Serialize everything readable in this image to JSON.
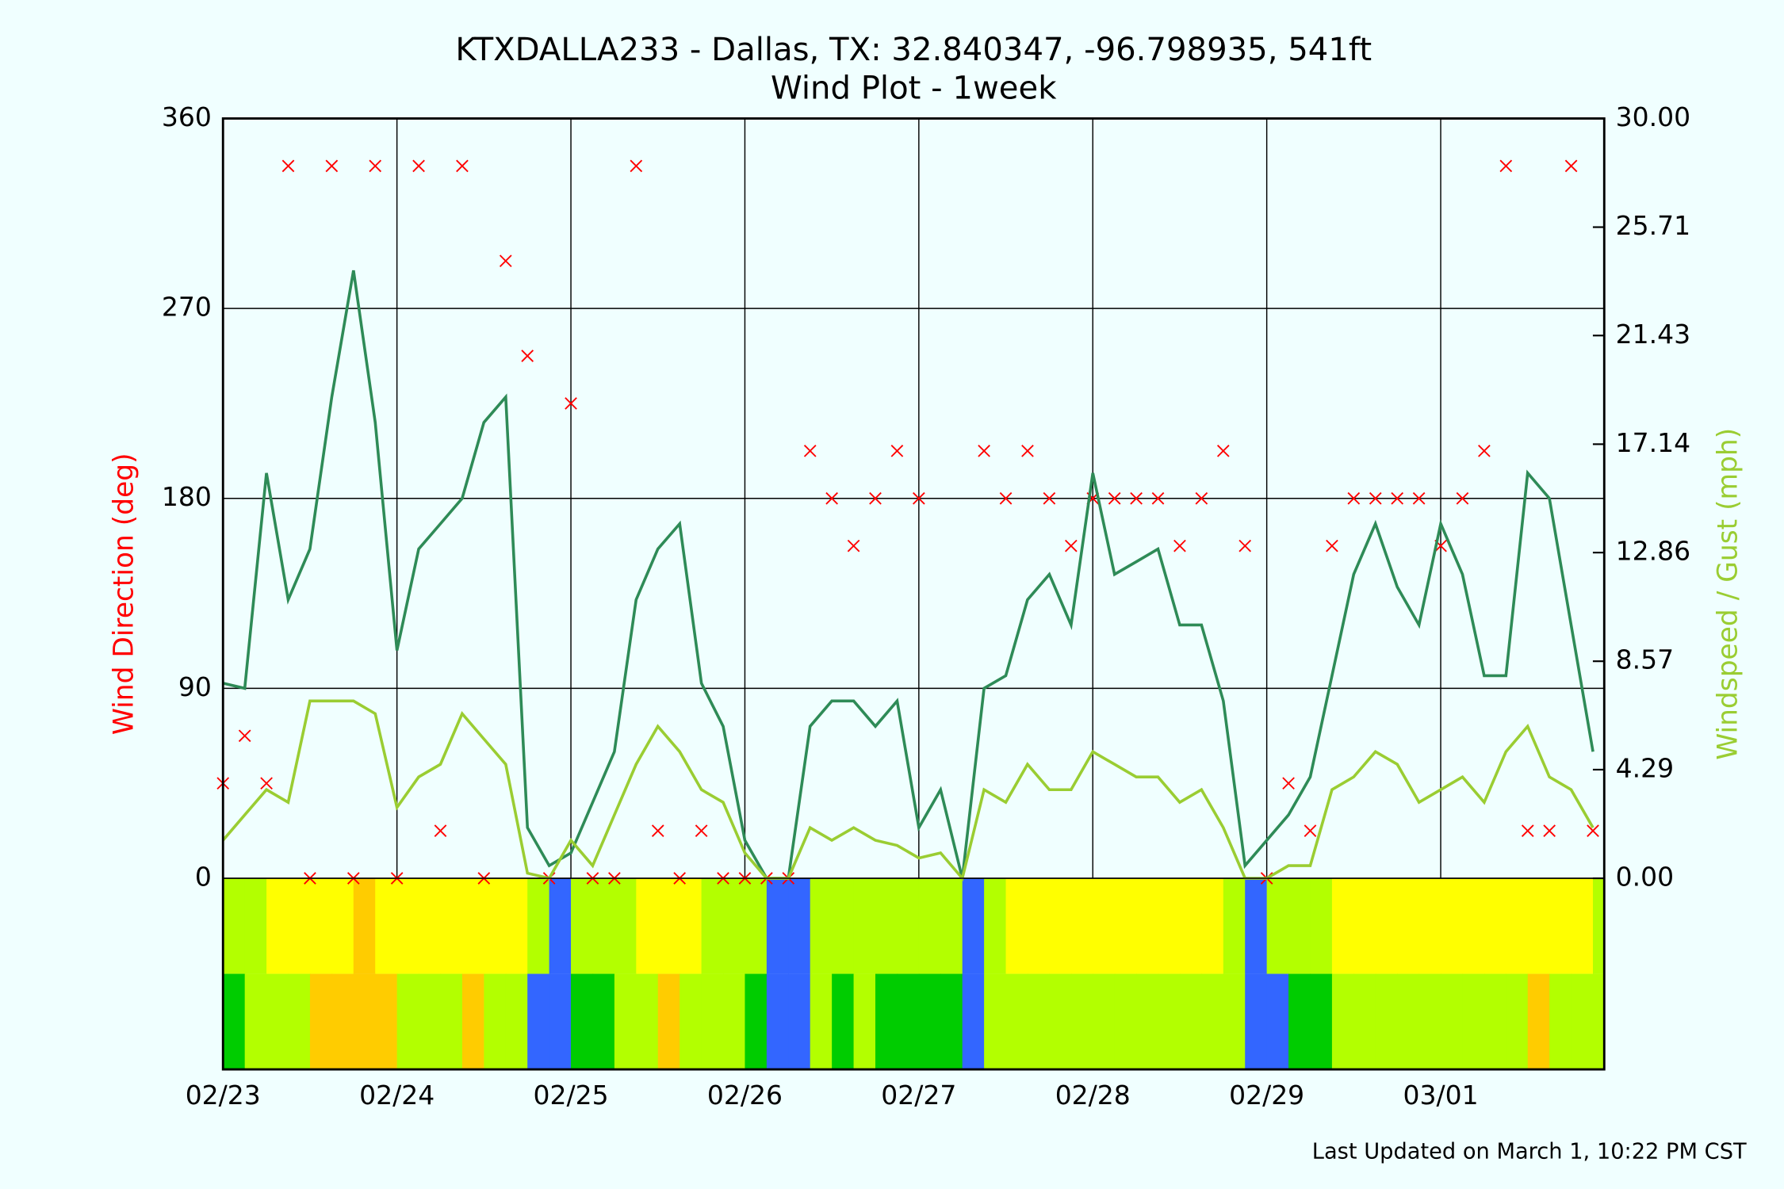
{
  "chart_data": {
    "type": "wind",
    "title": "KTXDALLA233 - Dallas, TX: 32.840347, -96.798935, 541ft",
    "subtitle": "Wind Plot - 1week",
    "ylabel": "Wind Direction (deg)",
    "y2label": "Windspeed / Gust (mph)",
    "footer": "Last Updated on March 1, 10:22 PM CST",
    "xlim": [
      0,
      7.94
    ],
    "xticks": [
      {
        "value": 0,
        "label": "02/23"
      },
      {
        "value": 1,
        "label": "02/24"
      },
      {
        "value": 2,
        "label": "02/25"
      },
      {
        "value": 3,
        "label": "02/26"
      },
      {
        "value": 4,
        "label": "02/27"
      },
      {
        "value": 5,
        "label": "02/28"
      },
      {
        "value": 6,
        "label": "02/29"
      },
      {
        "value": 7,
        "label": "03/01"
      }
    ],
    "ylim": [
      0,
      360
    ],
    "yticks": [
      0,
      90,
      180,
      270,
      360
    ],
    "y2lim": [
      0,
      30
    ],
    "y2ticks": [
      {
        "value": 0,
        "label": "0.00"
      },
      4.29,
      8.57,
      12.86,
      17.14,
      21.43,
      25.71,
      {
        "value": 30,
        "label": "30.00"
      }
    ],
    "grid": true,
    "x": [
      0,
      0.125,
      0.25,
      0.375,
      0.5,
      0.625,
      0.75,
      0.875,
      1,
      1.125,
      1.25,
      1.375,
      1.5,
      1.625,
      1.75,
      1.875,
      2,
      2.125,
      2.25,
      2.375,
      2.5,
      2.625,
      2.75,
      2.875,
      3,
      3.125,
      3.25,
      3.375,
      3.5,
      3.625,
      3.75,
      3.875,
      4,
      4.125,
      4.25,
      4.375,
      4.5,
      4.625,
      4.75,
      4.875,
      5,
      5.125,
      5.25,
      5.375,
      5.5,
      5.625,
      5.75,
      5.875,
      6,
      6.125,
      6.25,
      6.375,
      6.5,
      6.625,
      6.75,
      6.875,
      7,
      7.125,
      7.25,
      7.375,
      7.5,
      7.625,
      7.75,
      7.875
    ],
    "series": [
      {
        "kind": "scatter",
        "color": "#ff0000",
        "values": [
          45,
          67.5,
          45,
          337.5,
          0,
          337.5,
          0,
          337.5,
          0,
          337.5,
          22.5,
          337.5,
          0,
          292.5,
          247.5,
          0,
          225,
          0,
          0,
          337.5,
          22.5,
          0,
          22.5,
          0,
          0,
          0,
          0,
          202.5,
          180,
          157.5,
          180,
          202.5,
          180,
          null,
          null,
          202.5,
          180,
          202.5,
          180,
          157.5,
          180,
          180,
          180,
          180,
          157.5,
          180,
          202.5,
          157.5,
          0,
          45,
          22.5,
          157.5,
          180,
          180,
          180,
          180,
          157.5,
          180,
          202.5,
          337.5,
          22.5,
          22.5,
          337.5,
          22.5
        ]
      },
      {
        "kind": "line",
        "axis": "y2",
        "color": "#2e8b57",
        "values": [
          7.7,
          7.5,
          16,
          11,
          13,
          19,
          24,
          18,
          9,
          13,
          14,
          15,
          18,
          19,
          2,
          0.5,
          1,
          3,
          5,
          11,
          13,
          14,
          7.7,
          6,
          1.5,
          0,
          0,
          6,
          7,
          7,
          6,
          7,
          2,
          3.5,
          0,
          7.5,
          8,
          11,
          12,
          10,
          16,
          12,
          12.5,
          13,
          10,
          10,
          7,
          0.5,
          1.5,
          2.5,
          4,
          8,
          12,
          14,
          11.5,
          10,
          14,
          12,
          8,
          8,
          16,
          15,
          10,
          5
        ],
        "band_colors": [
          "#b3ff00",
          "#b3ff00",
          "#ffff00",
          "#ffff00",
          "#ffff00",
          "#ffff00",
          "#ffcc00",
          "#ffff00",
          "#ffff00",
          "#ffff00",
          "#ffff00",
          "#ffff00",
          "#ffff00",
          "#ffff00",
          "#b3ff00",
          "#3366ff",
          "#b3ff00",
          "#b3ff00",
          "#b3ff00",
          "#ffff00",
          "#ffff00",
          "#ffff00",
          "#b3ff00",
          "#b3ff00",
          "#b3ff00",
          "#3366ff",
          "#3366ff",
          "#b3ff00",
          "#b3ff00",
          "#b3ff00",
          "#b3ff00",
          "#b3ff00",
          "#b3ff00",
          "#b3ff00",
          "#3366ff",
          "#b3ff00",
          "#ffff00",
          "#ffff00",
          "#ffff00",
          "#ffff00",
          "#ffff00",
          "#ffff00",
          "#ffff00",
          "#ffff00",
          "#ffff00",
          "#ffff00",
          "#b3ff00",
          "#3366ff",
          "#b3ff00",
          "#b3ff00",
          "#b3ff00",
          "#ffff00",
          "#ffff00",
          "#ffff00",
          "#ffff00",
          "#ffff00",
          "#ffff00",
          "#ffff00",
          "#ffff00",
          "#ffff00",
          "#ffff00",
          "#ffff00",
          "#ffff00",
          "#b3ff00"
        ]
      },
      {
        "kind": "line",
        "axis": "y2",
        "color": "#9acd32",
        "values": [
          1.5,
          2.5,
          3.5,
          3,
          7,
          7,
          7,
          6.5,
          2.8,
          4,
          4.5,
          6.5,
          5.5,
          4.5,
          0.2,
          0,
          1.5,
          0.5,
          2.5,
          4.5,
          6,
          5,
          3.5,
          3,
          1,
          0,
          0,
          2,
          1.5,
          2,
          1.5,
          1.3,
          0.8,
          1,
          0,
          3.5,
          3,
          4.5,
          3.5,
          3.5,
          5,
          4.5,
          4,
          4,
          3,
          3.5,
          2,
          0,
          0,
          0.5,
          0.5,
          3.5,
          4,
          5,
          4.5,
          3,
          3.5,
          4,
          3,
          5,
          6,
          4,
          3.5,
          2
        ],
        "band_colors": [
          "#00cc00",
          "#b3ff00",
          "#b3ff00",
          "#b3ff00",
          "#ffcc00",
          "#ffcc00",
          "#ffcc00",
          "#ffcc00",
          "#b3ff00",
          "#b3ff00",
          "#b3ff00",
          "#ffcc00",
          "#b3ff00",
          "#b3ff00",
          "#3366ff",
          "#3366ff",
          "#00cc00",
          "#00cc00",
          "#b3ff00",
          "#b3ff00",
          "#ffcc00",
          "#b3ff00",
          "#b3ff00",
          "#b3ff00",
          "#00cc00",
          "#3366ff",
          "#3366ff",
          "#b3ff00",
          "#00cc00",
          "#b3ff00",
          "#00cc00",
          "#00cc00",
          "#00cc00",
          "#00cc00",
          "#3366ff",
          "#b3ff00",
          "#b3ff00",
          "#b3ff00",
          "#b3ff00",
          "#b3ff00",
          "#b3ff00",
          "#b3ff00",
          "#b3ff00",
          "#b3ff00",
          "#b3ff00",
          "#b3ff00",
          "#b3ff00",
          "#3366ff",
          "#3366ff",
          "#00cc00",
          "#00cc00",
          "#b3ff00",
          "#b3ff00",
          "#b3ff00",
          "#b3ff00",
          "#b3ff00",
          "#b3ff00",
          "#b3ff00",
          "#b3ff00",
          "#b3ff00",
          "#ffcc00",
          "#b3ff00",
          "#b3ff00",
          "#b3ff00"
        ]
      }
    ]
  }
}
